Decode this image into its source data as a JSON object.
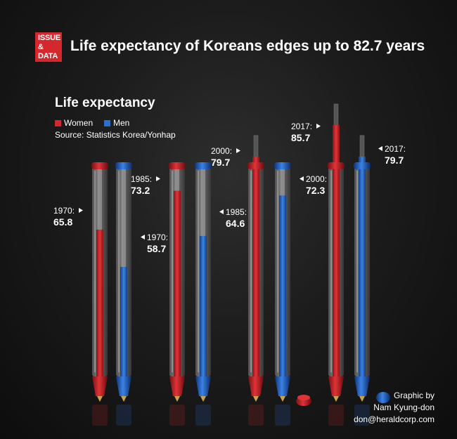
{
  "header": {
    "badge_line1": "ISSUE",
    "badge_line2": "& DATA",
    "title": "Life expectancy of Koreans edges up to 82.7 years"
  },
  "legend": {
    "women": "Women",
    "men": "Men"
  },
  "source": "Source: Statistics Korea/Yonhap",
  "credit": {
    "line1": "Graphic by",
    "line2": "Nam Kyung-don",
    "line3": "don@heraldcorp.com"
  },
  "colors": {
    "women": "#d4282e",
    "men": "#2a6fd0",
    "badge": "#d4282e"
  },
  "chart_data": {
    "type": "bar",
    "title": "Life expectancy",
    "categories": [
      "1970",
      "1985",
      "2000",
      "2017"
    ],
    "series": [
      {
        "name": "Women",
        "values": [
          65.8,
          73.2,
          79.7,
          85.7
        ]
      },
      {
        "name": "Men",
        "values": [
          58.7,
          64.6,
          72.3,
          79.7
        ]
      }
    ],
    "labels": [
      {
        "year": "1970:",
        "value": "65.8"
      },
      {
        "year": "1970:",
        "value": "58.7"
      },
      {
        "year": "1985:",
        "value": "73.2"
      },
      {
        "year": "1985:",
        "value": "64.6"
      },
      {
        "year": "2000:",
        "value": "79.7"
      },
      {
        "year": "2000:",
        "value": "72.3"
      },
      {
        "year": "2017:",
        "value": "85.7"
      },
      {
        "year": "2017:",
        "value": "79.7"
      }
    ],
    "legend_position": "top-left",
    "grid": false
  }
}
